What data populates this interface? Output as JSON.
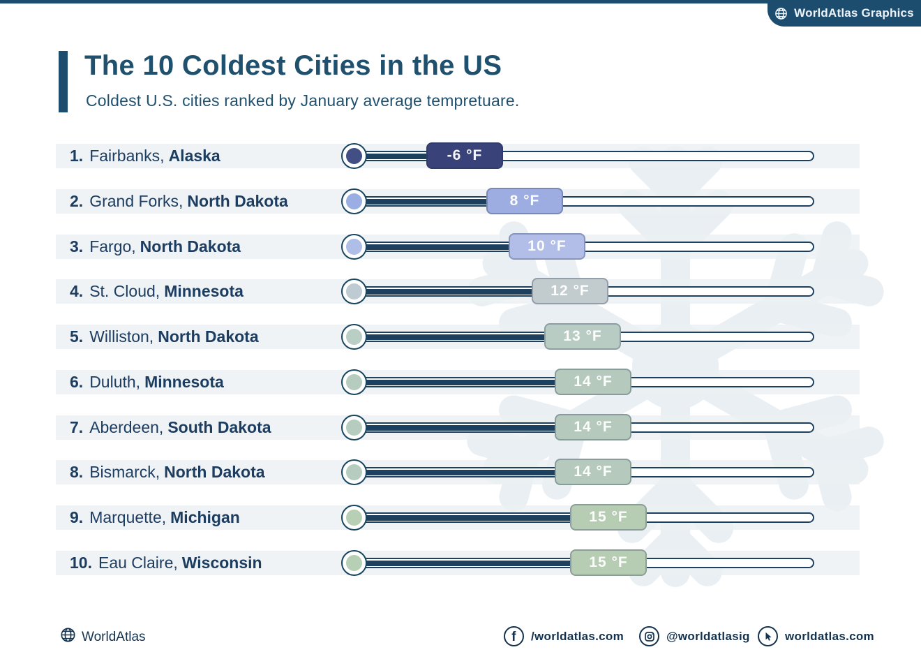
{
  "header": {
    "brand": "WorldAtlas Graphics"
  },
  "title": {
    "text": "The 10 Coldest Cities in the US",
    "subtitle": "Coldest U.S. cities ranked by January average tempretuare."
  },
  "chart_data": {
    "type": "bar",
    "orientation": "horizontal",
    "title": "The 10 Coldest Cities in the US",
    "subtitle": "Coldest U.S. cities ranked by January average tempretuare.",
    "unit": "°F",
    "categories": [
      "Fairbanks, Alaska",
      "Grand Forks, North Dakota",
      "Fargo, North Dakota",
      "St. Cloud, Minnesota",
      "Williston, North Dakota",
      "Duluth, Minnesota",
      "Aberdeen, South Dakota",
      "Bismarck, North Dakota",
      "Marquette, Michigan",
      "Eau Claire, Wisconsin"
    ],
    "values": [
      -6,
      8,
      10,
      12,
      13,
      14,
      14,
      14,
      15,
      15
    ],
    "value_labels": [
      "-6 °F",
      "8 °F",
      "10 °F",
      "12 °F",
      "13 °F",
      "14 °F",
      "14 °F",
      "14 °F",
      "15 °F",
      "15 °F"
    ],
    "xlabel": "",
    "ylabel": "",
    "xlim": [
      -6,
      15
    ],
    "legend": false,
    "grid": false
  },
  "rows": [
    {
      "rank": "1.",
      "city": "Fairbanks,",
      "state": "Alaska",
      "temp": -6,
      "temp_label": "-6 °F",
      "badge_color": "#3a4379",
      "bulb_color": "#414f85"
    },
    {
      "rank": "2.",
      "city": "Grand Forks,",
      "state": "North Dakota",
      "temp": 8,
      "temp_label": "8 °F",
      "badge_color": "#9dade1",
      "bulb_color": "#9baee3"
    },
    {
      "rank": "3.",
      "city": "Fargo,",
      "state": "North Dakota",
      "temp": 10,
      "temp_label": "10 °F",
      "badge_color": "#b2bee7",
      "bulb_color": "#aebee7"
    },
    {
      "rank": "4.",
      "city": "St. Cloud,",
      "state": "Minnesota",
      "temp": 12,
      "temp_label": "12 °F",
      "badge_color": "#c2cccf",
      "bulb_color": "#becbd2"
    },
    {
      "rank": "5.",
      "city": "Williston,",
      "state": "North Dakota",
      "temp": 13,
      "temp_label": "13 °F",
      "badge_color": "#b9ccc3",
      "bulb_color": "#b9cec5"
    },
    {
      "rank": "6.",
      "city": "Duluth,",
      "state": "Minnesota",
      "temp": 14,
      "temp_label": "14 °F",
      "badge_color": "#b5cabc",
      "bulb_color": "#b5ccbe"
    },
    {
      "rank": "7.",
      "city": "Aberdeen,",
      "state": "South Dakota",
      "temp": 14,
      "temp_label": "14 °F",
      "badge_color": "#b5cabc",
      "bulb_color": "#b5ccbe"
    },
    {
      "rank": "8.",
      "city": "Bismarck,",
      "state": "North Dakota",
      "temp": 14,
      "temp_label": "14 °F",
      "badge_color": "#b5cabc",
      "bulb_color": "#b5ccbe"
    },
    {
      "rank": "9.",
      "city": "Marquette,",
      "state": "Michigan",
      "temp": 15,
      "temp_label": "15 °F",
      "badge_color": "#b7cdb3",
      "bulb_color": "#b7cfb5"
    },
    {
      "rank": "10.",
      "city": "Eau Claire,",
      "state": "Wisconsin",
      "temp": 15,
      "temp_label": "15 °F",
      "badge_color": "#b7cdb3",
      "bulb_color": "#b7cfb5"
    }
  ],
  "colors": {
    "accent": "#1c4c6e",
    "navy": "#1d405f",
    "row_bg": "#ecf0f3",
    "watermark": "#e6edf1"
  },
  "footer": {
    "brand": "WorldAtlas",
    "facebook": "/worldatlas.com",
    "instagram": "@worldatlasig",
    "website": "worldatlas.com"
  }
}
